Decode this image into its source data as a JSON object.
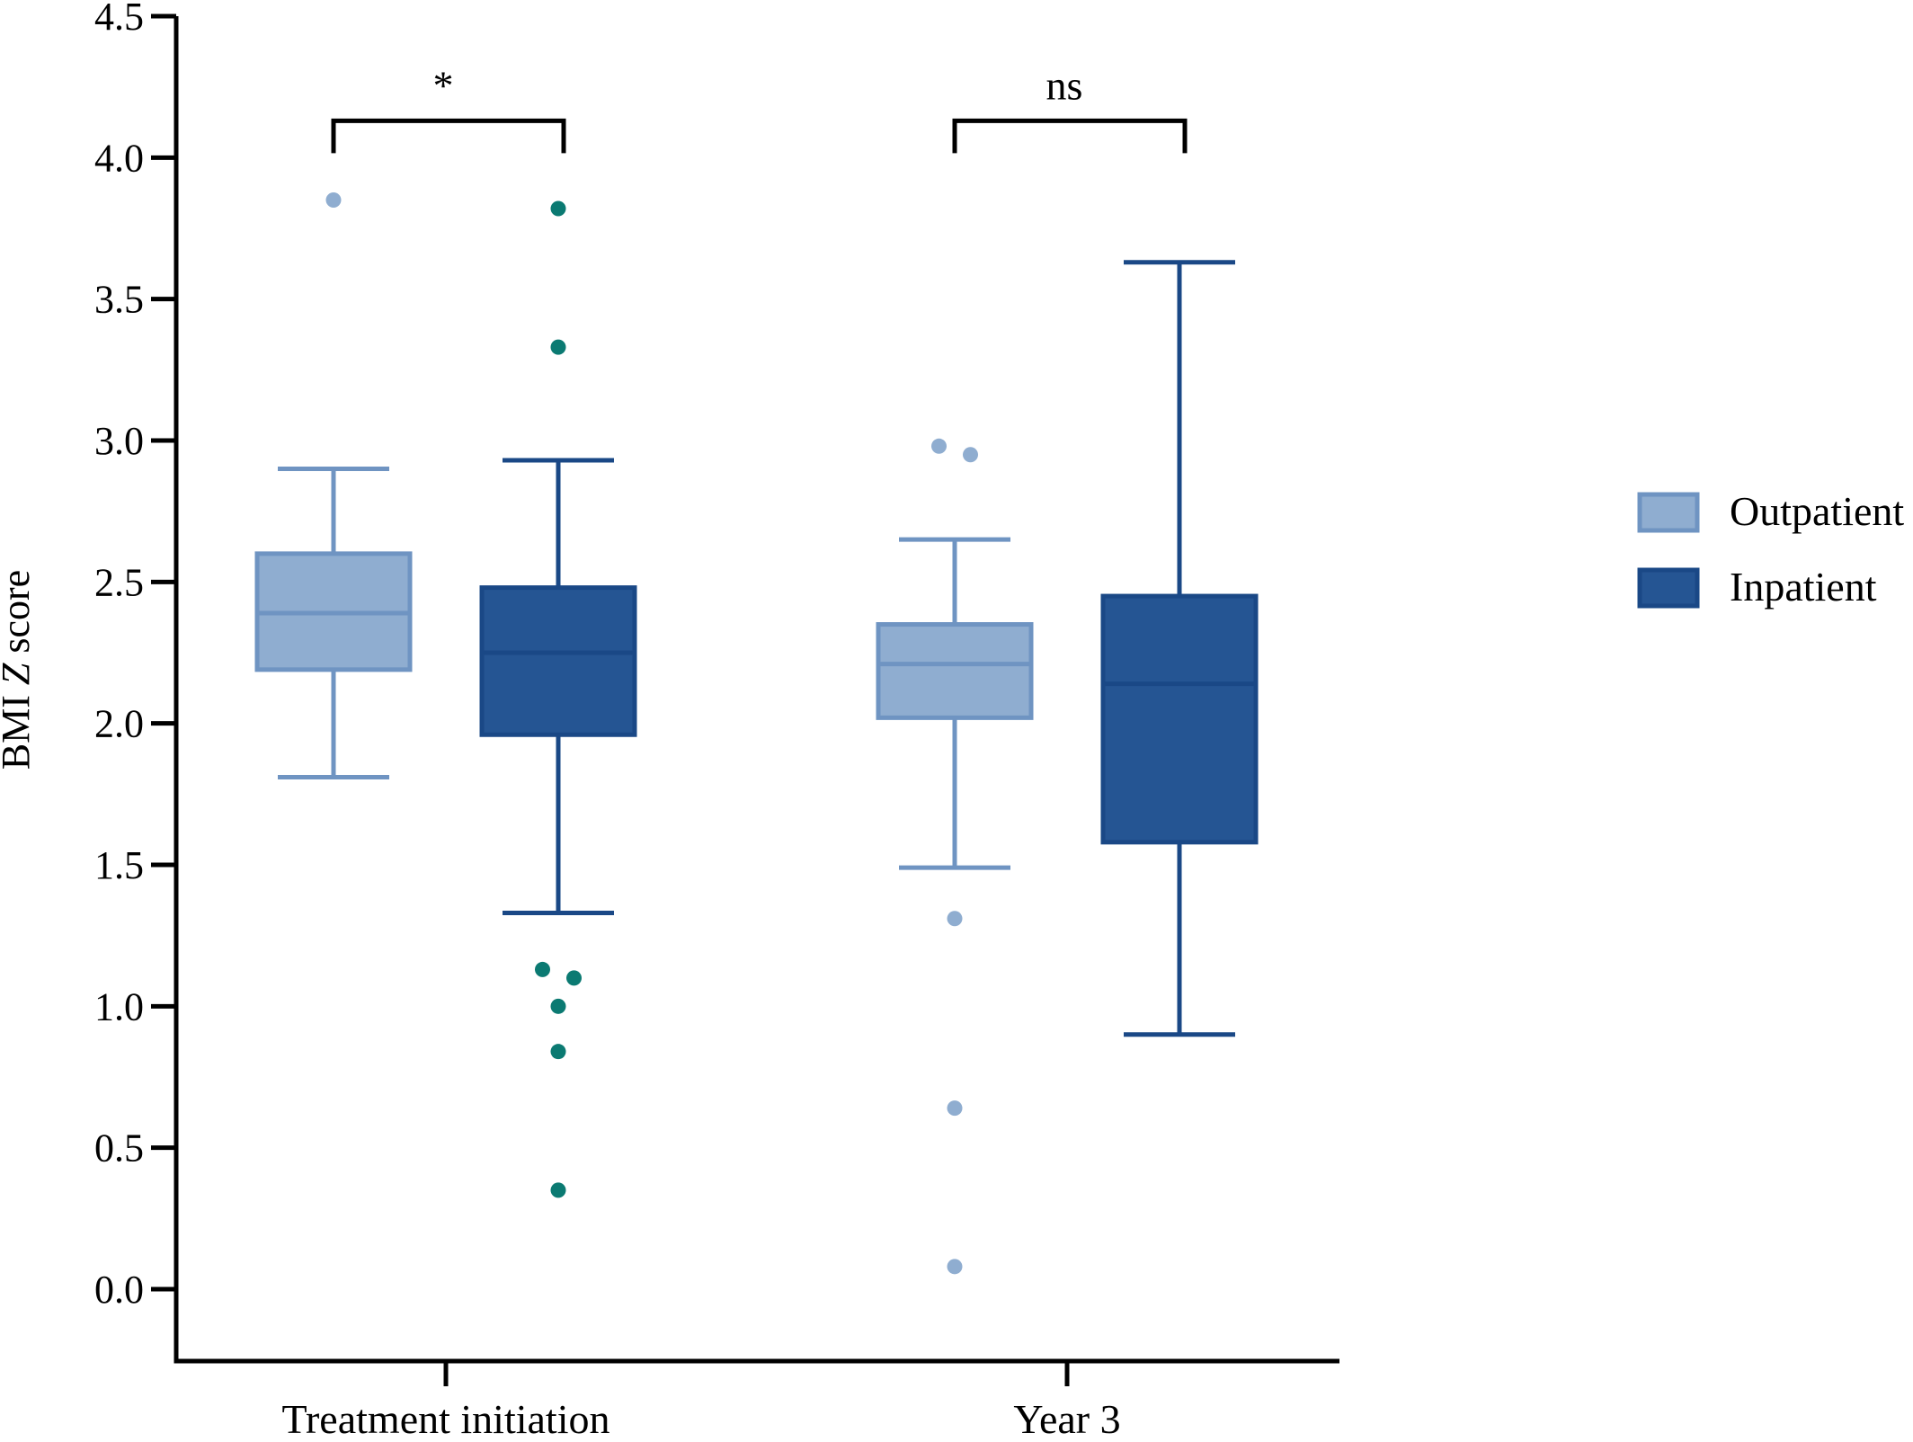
{
  "chart_data": {
    "type": "box",
    "ylabel_prefix": "BMI ",
    "ylabel_italic": "Z",
    "ylabel_suffix": " score",
    "xlabel": "",
    "ylim": [
      -0.25,
      4.5
    ],
    "yticks": [
      "0.0",
      "0.5",
      "1.0",
      "1.5",
      "2.0",
      "2.5",
      "3.0",
      "3.5",
      "4.0",
      "4.5"
    ],
    "yticks_values": [
      0,
      0.5,
      1.0,
      1.5,
      2.0,
      2.5,
      3.0,
      3.5,
      4.0,
      4.5
    ],
    "categories": [
      "Treatment initiation",
      "Year 3"
    ],
    "legend_position": "right",
    "grid": false,
    "series": [
      {
        "name": "Outpatient",
        "fill": "#8fadd0",
        "stroke": "#6f94c2",
        "point_color": "#8fadd0",
        "boxes": [
          {
            "category": "Treatment initiation",
            "whisker_low": 1.81,
            "q1": 2.19,
            "median": 2.39,
            "q3": 2.6,
            "whisker_high": 2.9,
            "outliers": [
              {
                "value": 3.85,
                "jitter": 0
              }
            ]
          },
          {
            "category": "Year 3",
            "whisker_low": 1.49,
            "q1": 2.02,
            "median": 2.21,
            "q3": 2.35,
            "whisker_high": 2.65,
            "outliers": [
              {
                "value": 2.98,
                "jitter": -0.35
              },
              {
                "value": 2.95,
                "jitter": 0.35
              },
              {
                "value": 1.31,
                "jitter": 0
              },
              {
                "value": 0.64,
                "jitter": 0
              },
              {
                "value": 0.08,
                "jitter": 0
              }
            ]
          }
        ]
      },
      {
        "name": "Inpatient",
        "fill": "#255593",
        "stroke": "#1a4886",
        "point_color": "#0b7a72",
        "boxes": [
          {
            "category": "Treatment initiation",
            "whisker_low": 1.33,
            "q1": 1.96,
            "median": 2.25,
            "q3": 2.48,
            "whisker_high": 2.93,
            "outliers": [
              {
                "value": 3.82,
                "jitter": 0
              },
              {
                "value": 3.33,
                "jitter": 0
              },
              {
                "value": 1.13,
                "jitter": -0.35
              },
              {
                "value": 1.1,
                "jitter": 0.35
              },
              {
                "value": 1.0,
                "jitter": 0
              },
              {
                "value": 0.84,
                "jitter": 0
              },
              {
                "value": 0.35,
                "jitter": 0
              }
            ]
          },
          {
            "category": "Year 3",
            "whisker_low": 0.9,
            "q1": 1.58,
            "median": 2.14,
            "q3": 2.45,
            "whisker_high": 3.63,
            "outliers": []
          }
        ]
      }
    ],
    "significance": [
      {
        "category": "Treatment initiation",
        "label": "*",
        "bracket_value": 4.13
      },
      {
        "category": "Year 3",
        "label": "ns",
        "bracket_value": 4.13
      }
    ]
  }
}
